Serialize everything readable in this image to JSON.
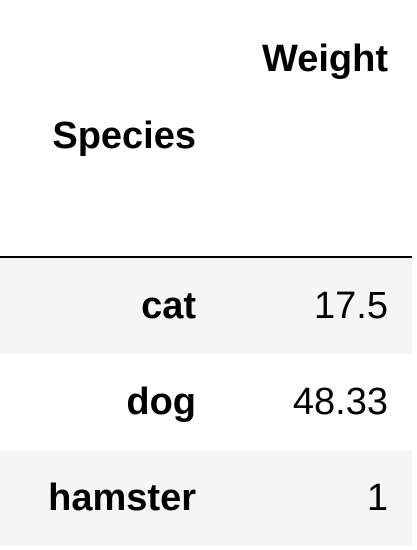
{
  "table": {
    "columns": {
      "index_header": "Species",
      "value_header": "Weight"
    },
    "rows": [
      {
        "species": "cat",
        "weight": "17.5"
      },
      {
        "species": "dog",
        "weight": "48.33"
      },
      {
        "species": "hamster",
        "weight": "1"
      }
    ],
    "colors": {
      "stripe": "#f5f5f5",
      "text": "#000000",
      "rule": "#000000"
    }
  }
}
